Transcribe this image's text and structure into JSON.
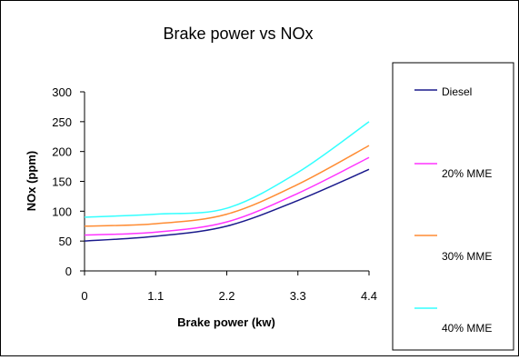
{
  "chart_data": {
    "type": "line",
    "title": "Brake power vs NOx",
    "xlabel": "Brake power (kw)",
    "ylabel": "NOx (ppm)",
    "x": [
      0,
      1.1,
      2.2,
      3.3,
      4.4
    ],
    "xlim": [
      0,
      4.4
    ],
    "ylim": [
      0,
      300
    ],
    "y_ticks": [
      0,
      50,
      100,
      150,
      200,
      250,
      300
    ],
    "grid": false,
    "legend_position": "right",
    "series": [
      {
        "name": "Diesel",
        "color": "#1a1a8c",
        "values": [
          50,
          58,
          75,
          118,
          170
        ]
      },
      {
        "name": "20% MME",
        "color": "#ff33ff",
        "values": [
          60,
          65,
          82,
          130,
          190
        ]
      },
      {
        "name": "30% MME",
        "color": "#ff8c33",
        "values": [
          75,
          79,
          95,
          145,
          210
        ]
      },
      {
        "name": "40% MME",
        "color": "#33ffff",
        "values": [
          90,
          95,
          105,
          165,
          250
        ]
      }
    ]
  }
}
